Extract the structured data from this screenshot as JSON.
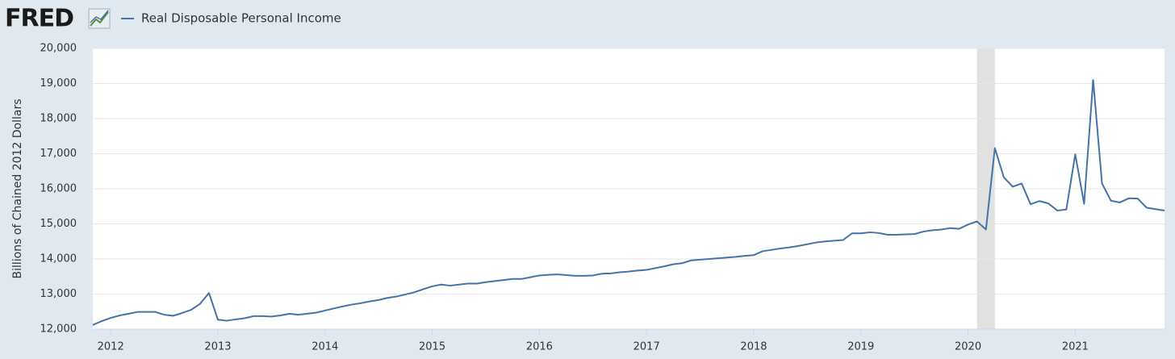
{
  "chart_data": {
    "type": "line",
    "logo": "FRED",
    "ylabel": "Billions of Chained 2012 Dollars",
    "x": [
      2011.833,
      2011.917,
      2012,
      2012.083,
      2012.167,
      2012.25,
      2012.333,
      2012.417,
      2012.5,
      2012.583,
      2012.667,
      2012.75,
      2012.833,
      2012.917,
      2013,
      2013.083,
      2013.167,
      2013.25,
      2013.333,
      2013.417,
      2013.5,
      2013.583,
      2013.667,
      2013.75,
      2013.833,
      2013.917,
      2014,
      2014.083,
      2014.167,
      2014.25,
      2014.333,
      2014.417,
      2014.5,
      2014.583,
      2014.667,
      2014.75,
      2014.833,
      2014.917,
      2015,
      2015.083,
      2015.167,
      2015.25,
      2015.333,
      2015.417,
      2015.5,
      2015.583,
      2015.667,
      2015.75,
      2015.833,
      2015.917,
      2016,
      2016.083,
      2016.167,
      2016.25,
      2016.333,
      2016.417,
      2016.5,
      2016.583,
      2016.667,
      2016.75,
      2016.833,
      2016.917,
      2017,
      2017.083,
      2017.167,
      2017.25,
      2017.333,
      2017.417,
      2017.5,
      2017.583,
      2017.667,
      2017.75,
      2017.833,
      2017.917,
      2018,
      2018.083,
      2018.167,
      2018.25,
      2018.333,
      2018.417,
      2018.5,
      2018.583,
      2018.667,
      2018.75,
      2018.833,
      2018.917,
      2019,
      2019.083,
      2019.167,
      2019.25,
      2019.333,
      2019.417,
      2019.5,
      2019.583,
      2019.667,
      2019.75,
      2019.833,
      2019.917,
      2020,
      2020.083,
      2020.167,
      2020.25,
      2020.333,
      2020.417,
      2020.5,
      2020.583,
      2020.667,
      2020.75,
      2020.833,
      2020.917,
      2021,
      2021.083,
      2021.167,
      2021.25,
      2021.333,
      2021.417,
      2021.5,
      2021.583,
      2021.667,
      2021.75,
      2021.833
    ],
    "series": [
      {
        "name": "Real Disposable Personal Income",
        "color": "#4572a7",
        "values": [
          12120,
          12230,
          12320,
          12390,
          12440,
          12490,
          12490,
          12490,
          12410,
          12380,
          12460,
          12550,
          12720,
          13030,
          12270,
          12240,
          12280,
          12310,
          12370,
          12370,
          12360,
          12390,
          12440,
          12410,
          12440,
          12470,
          12530,
          12590,
          12650,
          12700,
          12740,
          12790,
          12830,
          12890,
          12930,
          12990,
          13050,
          13140,
          13220,
          13270,
          13240,
          13270,
          13300,
          13300,
          13340,
          13370,
          13400,
          13430,
          13430,
          13480,
          13530,
          13550,
          13560,
          13540,
          13520,
          13520,
          13530,
          13580,
          13590,
          13620,
          13640,
          13670,
          13690,
          13740,
          13790,
          13850,
          13880,
          13960,
          13980,
          14000,
          14020,
          14040,
          14060,
          14090,
          14110,
          14220,
          14260,
          14300,
          14330,
          14370,
          14420,
          14470,
          14500,
          14520,
          14540,
          14730,
          14730,
          14760,
          14740,
          14690,
          14690,
          14700,
          14710,
          14780,
          14820,
          14840,
          14880,
          14860,
          14980,
          15070,
          14840,
          17160,
          16330,
          16060,
          16150,
          15560,
          15650,
          15580,
          15380,
          15410,
          16980,
          15570,
          19100,
          16150,
          15660,
          15610,
          15730,
          15720,
          15460,
          15420,
          15380
        ]
      }
    ],
    "shaded_ranges": [
      [
        2020.083,
        2020.25
      ]
    ],
    "shade_color": "#e1e1e1",
    "xlim": [
      2011.833,
      2021.833
    ],
    "xticks": [
      2012,
      2013,
      2014,
      2015,
      2016,
      2017,
      2018,
      2019,
      2020,
      2021
    ],
    "ylim": [
      12000,
      20000
    ],
    "yticks": [
      {
        "value": 12000,
        "label": "12,000"
      },
      {
        "value": 13000,
        "label": "13,000"
      },
      {
        "value": 14000,
        "label": "14,000"
      },
      {
        "value": 15000,
        "label": "15,000"
      },
      {
        "value": 16000,
        "label": "16,000"
      },
      {
        "value": 17000,
        "label": "17,000"
      },
      {
        "value": 18000,
        "label": "18,000"
      },
      {
        "value": 19000,
        "label": "19,000"
      },
      {
        "value": 20000,
        "label": "20,000"
      }
    ],
    "grid": true
  }
}
